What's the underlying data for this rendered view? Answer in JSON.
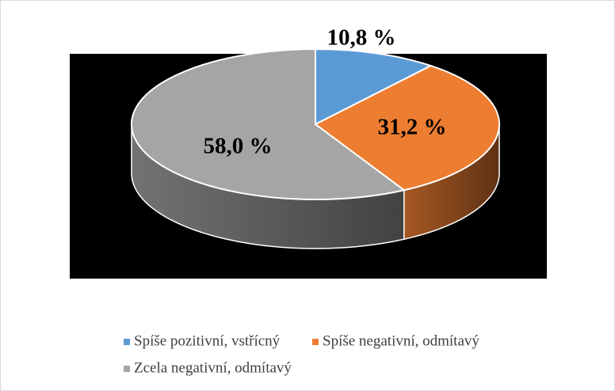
{
  "chart_data": {
    "type": "pie3d",
    "categories": [
      "Spíše pozitivní, vstřícný",
      "Spíše negativní, odmítavý",
      "Zcela negativní, odmítavý"
    ],
    "values": [
      10.8,
      31.2,
      58.0
    ],
    "value_labels": [
      "10,8 %",
      "31,2 %",
      "58,0 %"
    ],
    "colors": [
      "#5b9bd5",
      "#ed7d31",
      "#a5a5a5"
    ],
    "legend": "bottom"
  }
}
